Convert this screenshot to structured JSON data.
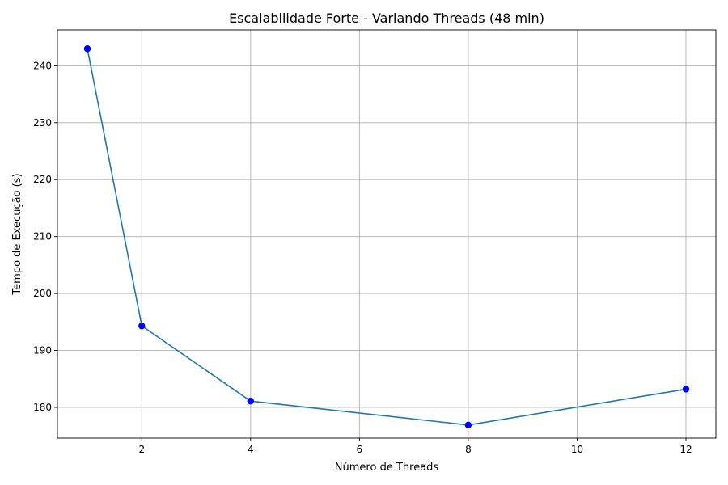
{
  "chart_data": {
    "type": "line",
    "title": "Escalabilidade Forte - Variando Threads (48 min)",
    "xlabel": "Número de Threads",
    "ylabel": "Tempo de Execução (s)",
    "xlim": [
      0.45,
      12.55
    ],
    "ylim": [
      174.6,
      246.3
    ],
    "xticks": [
      2,
      4,
      6,
      8,
      10,
      12
    ],
    "yticks": [
      180,
      190,
      200,
      210,
      220,
      230,
      240
    ],
    "grid": true,
    "series": [
      {
        "x": [
          1,
          2,
          4,
          8,
          12
        ],
        "values": [
          243.0,
          194.3,
          181.1,
          176.9,
          183.2
        ],
        "line_color": "#1f77b4",
        "marker_color": "#0000ff"
      }
    ]
  }
}
